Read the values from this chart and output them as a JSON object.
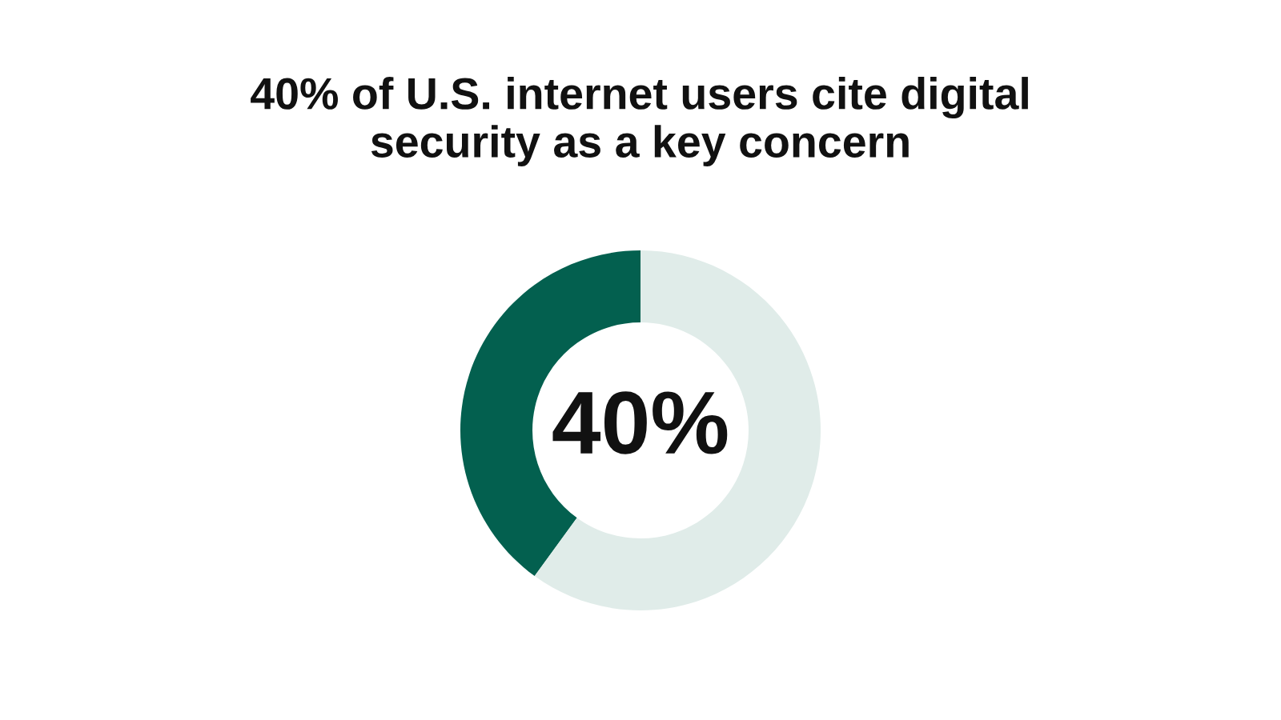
{
  "chart_data": {
    "type": "donut",
    "title": "40% of U.S. internet users cite digital\nsecurity as a key concern",
    "categories": [
      null,
      null
    ],
    "values": [
      40,
      60
    ],
    "colors": [
      "#03604f",
      "#e0ece9"
    ],
    "annotations": [
      "40%"
    ],
    "legend": false
  }
}
